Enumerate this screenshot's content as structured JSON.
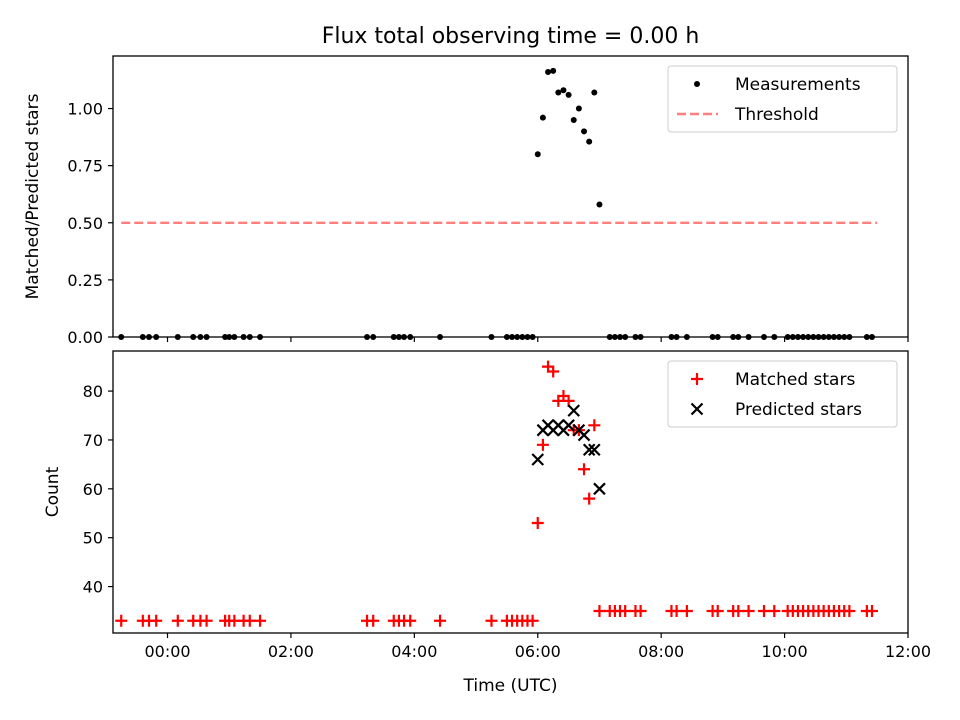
{
  "figure": {
    "title": "Flux total observing time = 0.00 h"
  },
  "chart_data": [
    {
      "type": "scatter",
      "ylabel": "Matched/Predicted stars",
      "ylim": [
        0,
        1.23
      ],
      "yticks": [
        0.0,
        0.25,
        0.5,
        0.75,
        1.0
      ],
      "ytick_labels": [
        "0.00",
        "0.25",
        "0.50",
        "0.75",
        "1.00"
      ],
      "xlim": [
        "23:07",
        "12:00"
      ],
      "legend_position": "top-right",
      "legend": [
        {
          "label": "Measurements",
          "marker": "dot",
          "color": "#000000"
        },
        {
          "label": "Threshold",
          "marker": "dashed-line",
          "color": "#ff7f7f"
        }
      ],
      "threshold": {
        "name": "Threshold",
        "y": 0.5,
        "x_start": "23:15",
        "x_end": "11:30",
        "color": "#ff7f7f"
      },
      "series": [
        {
          "name": "Measurements",
          "color": "#000000",
          "points": [
            [
              "23:15",
              0
            ],
            [
              "23:36",
              0
            ],
            [
              "23:42",
              0
            ],
            [
              "23:49",
              0
            ],
            [
              "00:10",
              0
            ],
            [
              "00:25",
              0
            ],
            [
              "00:32",
              0
            ],
            [
              "00:38",
              0
            ],
            [
              "00:56",
              0
            ],
            [
              "01:00",
              0
            ],
            [
              "01:05",
              0
            ],
            [
              "01:14",
              0
            ],
            [
              "01:20",
              0
            ],
            [
              "01:30",
              0
            ],
            [
              "03:14",
              0
            ],
            [
              "03:20",
              0
            ],
            [
              "03:40",
              0
            ],
            [
              "03:45",
              0
            ],
            [
              "03:50",
              0
            ],
            [
              "03:56",
              0
            ],
            [
              "04:25",
              0
            ],
            [
              "05:15",
              0
            ],
            [
              "05:30",
              0
            ],
            [
              "05:35",
              0
            ],
            [
              "05:40",
              0
            ],
            [
              "05:45",
              0
            ],
            [
              "05:50",
              0
            ],
            [
              "05:55",
              0
            ],
            [
              "06:00",
              0.8
            ],
            [
              "06:05",
              0.96
            ],
            [
              "06:10",
              1.16
            ],
            [
              "06:15",
              1.165
            ],
            [
              "06:20",
              1.07
            ],
            [
              "06:25",
              1.08
            ],
            [
              "06:30",
              1.06
            ],
            [
              "06:35",
              0.95
            ],
            [
              "06:40",
              1.0
            ],
            [
              "06:45",
              0.9
            ],
            [
              "06:50",
              0.855
            ],
            [
              "06:55",
              1.07
            ],
            [
              "07:00",
              0.58
            ],
            [
              "07:10",
              0
            ],
            [
              "07:15",
              0
            ],
            [
              "07:20",
              0
            ],
            [
              "07:25",
              0
            ],
            [
              "07:35",
              0
            ],
            [
              "07:40",
              0
            ],
            [
              "08:10",
              0
            ],
            [
              "08:15",
              0
            ],
            [
              "08:25",
              0
            ],
            [
              "08:50",
              0
            ],
            [
              "08:55",
              0
            ],
            [
              "09:10",
              0
            ],
            [
              "09:15",
              0
            ],
            [
              "09:25",
              0
            ],
            [
              "09:40",
              0
            ],
            [
              "09:50",
              0
            ],
            [
              "10:03",
              0
            ],
            [
              "10:08",
              0
            ],
            [
              "10:13",
              0
            ],
            [
              "10:18",
              0
            ],
            [
              "10:23",
              0
            ],
            [
              "10:28",
              0
            ],
            [
              "10:33",
              0
            ],
            [
              "10:38",
              0
            ],
            [
              "10:43",
              0
            ],
            [
              "10:48",
              0
            ],
            [
              "10:53",
              0
            ],
            [
              "10:58",
              0
            ],
            [
              "11:03",
              0
            ],
            [
              "11:20",
              0
            ],
            [
              "11:25",
              0
            ]
          ]
        }
      ]
    },
    {
      "type": "scatter",
      "ylabel": "Count",
      "xlabel": "Time (UTC)",
      "ylim": [
        30.5,
        88.2
      ],
      "yticks": [
        40,
        50,
        60,
        70,
        80
      ],
      "ytick_labels": [
        "40",
        "50",
        "60",
        "70",
        "80"
      ],
      "xlim": [
        "23:07",
        "12:00"
      ],
      "xticks": [
        "00:00",
        "02:00",
        "04:00",
        "06:00",
        "08:00",
        "10:00",
        "12:00"
      ],
      "legend_position": "top-right",
      "legend": [
        {
          "label": "Matched stars",
          "marker": "plus",
          "color": "#ff0000"
        },
        {
          "label": "Predicted stars",
          "marker": "x",
          "color": "#000000"
        }
      ],
      "series": [
        {
          "name": "Matched stars",
          "marker": "plus",
          "color": "#ff0000",
          "points": [
            [
              "23:15",
              33
            ],
            [
              "23:36",
              33
            ],
            [
              "23:42",
              33
            ],
            [
              "23:49",
              33
            ],
            [
              "00:10",
              33
            ],
            [
              "00:25",
              33
            ],
            [
              "00:32",
              33
            ],
            [
              "00:38",
              33
            ],
            [
              "00:56",
              33
            ],
            [
              "01:00",
              33
            ],
            [
              "01:05",
              33
            ],
            [
              "01:14",
              33
            ],
            [
              "01:20",
              33
            ],
            [
              "01:30",
              33
            ],
            [
              "03:14",
              33
            ],
            [
              "03:20",
              33
            ],
            [
              "03:40",
              33
            ],
            [
              "03:45",
              33
            ],
            [
              "03:50",
              33
            ],
            [
              "03:56",
              33
            ],
            [
              "04:25",
              33
            ],
            [
              "05:15",
              33
            ],
            [
              "05:30",
              33
            ],
            [
              "05:35",
              33
            ],
            [
              "05:40",
              33
            ],
            [
              "05:45",
              33
            ],
            [
              "05:50",
              33
            ],
            [
              "05:55",
              33
            ],
            [
              "06:00",
              53
            ],
            [
              "06:05",
              69
            ],
            [
              "06:10",
              85
            ],
            [
              "06:15",
              84
            ],
            [
              "06:20",
              78
            ],
            [
              "06:25",
              79
            ],
            [
              "06:30",
              78
            ],
            [
              "06:35",
              72
            ],
            [
              "06:40",
              72
            ],
            [
              "06:45",
              64
            ],
            [
              "06:50",
              58
            ],
            [
              "06:55",
              73
            ],
            [
              "07:00",
              35
            ],
            [
              "07:10",
              35
            ],
            [
              "07:15",
              35
            ],
            [
              "07:20",
              35
            ],
            [
              "07:25",
              35
            ],
            [
              "07:35",
              35
            ],
            [
              "07:40",
              35
            ],
            [
              "08:10",
              35
            ],
            [
              "08:15",
              35
            ],
            [
              "08:25",
              35
            ],
            [
              "08:50",
              35
            ],
            [
              "08:55",
              35
            ],
            [
              "09:10",
              35
            ],
            [
              "09:15",
              35
            ],
            [
              "09:25",
              35
            ],
            [
              "09:40",
              35
            ],
            [
              "09:50",
              35
            ],
            [
              "10:03",
              35
            ],
            [
              "10:08",
              35
            ],
            [
              "10:13",
              35
            ],
            [
              "10:18",
              35
            ],
            [
              "10:23",
              35
            ],
            [
              "10:28",
              35
            ],
            [
              "10:33",
              35
            ],
            [
              "10:38",
              35
            ],
            [
              "10:43",
              35
            ],
            [
              "10:48",
              35
            ],
            [
              "10:53",
              35
            ],
            [
              "10:58",
              35
            ],
            [
              "11:03",
              35
            ],
            [
              "11:20",
              35
            ],
            [
              "11:25",
              35
            ]
          ]
        },
        {
          "name": "Predicted stars",
          "marker": "x",
          "color": "#000000",
          "points": [
            [
              "06:00",
              66
            ],
            [
              "06:05",
              72
            ],
            [
              "06:10",
              73
            ],
            [
              "06:15",
              72
            ],
            [
              "06:20",
              73
            ],
            [
              "06:25",
              72
            ],
            [
              "06:30",
              73
            ],
            [
              "06:35",
              76
            ],
            [
              "06:40",
              72
            ],
            [
              "06:45",
              71
            ],
            [
              "06:50",
              68
            ],
            [
              "06:55",
              68
            ],
            [
              "07:00",
              60
            ]
          ]
        }
      ]
    }
  ]
}
